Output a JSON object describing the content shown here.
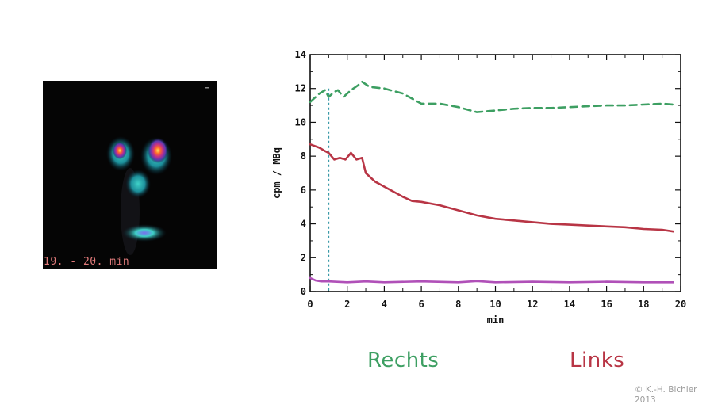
{
  "scan": {
    "caption": "19. - 20. min"
  },
  "chart_data": {
    "type": "line",
    "xlabel": "min",
    "ylabel": "cpm / MBq",
    "xlim": [
      0,
      20
    ],
    "ylim": [
      0,
      14
    ],
    "x_ticks": [
      "0",
      "2",
      "4",
      "6",
      "8",
      "10",
      "12",
      "14",
      "16",
      "18",
      "20"
    ],
    "y_ticks": [
      "0",
      "2",
      "4",
      "6",
      "8",
      "10",
      "12",
      "14"
    ],
    "reference_line_x": 1,
    "series": [
      {
        "name": "Rechts",
        "color": "#3d9f62",
        "style": "dashed",
        "points": [
          [
            0,
            11.2
          ],
          [
            0.5,
            11.7
          ],
          [
            0.8,
            11.9
          ],
          [
            1.0,
            11.5
          ],
          [
            1.3,
            11.8
          ],
          [
            1.5,
            11.9
          ],
          [
            1.8,
            11.5
          ],
          [
            2.2,
            11.9
          ],
          [
            2.6,
            12.2
          ],
          [
            2.8,
            12.4
          ],
          [
            3.2,
            12.1
          ],
          [
            4.0,
            12.0
          ],
          [
            5.0,
            11.7
          ],
          [
            6.0,
            11.1
          ],
          [
            7.0,
            11.1
          ],
          [
            8.0,
            10.9
          ],
          [
            9.0,
            10.6
          ],
          [
            10.0,
            10.7
          ],
          [
            11.0,
            10.8
          ],
          [
            12.0,
            10.85
          ],
          [
            13.0,
            10.85
          ],
          [
            14.0,
            10.9
          ],
          [
            15.0,
            10.95
          ],
          [
            16.0,
            11.0
          ],
          [
            17.0,
            11.0
          ],
          [
            18.0,
            11.05
          ],
          [
            19.0,
            11.1
          ],
          [
            19.6,
            11.05
          ]
        ]
      },
      {
        "name": "Links",
        "color": "#b83545",
        "style": "solid",
        "points": [
          [
            0,
            8.7
          ],
          [
            0.5,
            8.5
          ],
          [
            0.8,
            8.3
          ],
          [
            1.0,
            8.2
          ],
          [
            1.3,
            7.8
          ],
          [
            1.6,
            7.9
          ],
          [
            1.9,
            7.8
          ],
          [
            2.2,
            8.2
          ],
          [
            2.5,
            7.8
          ],
          [
            2.8,
            7.9
          ],
          [
            3.0,
            7.0
          ],
          [
            3.5,
            6.5
          ],
          [
            4.0,
            6.2
          ],
          [
            5.0,
            5.6
          ],
          [
            5.5,
            5.35
          ],
          [
            6.0,
            5.3
          ],
          [
            7.0,
            5.1
          ],
          [
            8.0,
            4.8
          ],
          [
            9.0,
            4.5
          ],
          [
            10.0,
            4.3
          ],
          [
            11.0,
            4.2
          ],
          [
            12.0,
            4.1
          ],
          [
            13.0,
            4.0
          ],
          [
            14.0,
            3.95
          ],
          [
            15.0,
            3.9
          ],
          [
            16.0,
            3.85
          ],
          [
            17.0,
            3.8
          ],
          [
            18.0,
            3.7
          ],
          [
            19.0,
            3.65
          ],
          [
            19.6,
            3.55
          ]
        ]
      },
      {
        "name": "",
        "color": "#b050b8",
        "style": "solid",
        "points": [
          [
            0,
            0.8
          ],
          [
            0.3,
            0.65
          ],
          [
            0.6,
            0.6
          ],
          [
            1,
            0.6
          ],
          [
            2,
            0.55
          ],
          [
            3,
            0.6
          ],
          [
            4,
            0.55
          ],
          [
            6,
            0.6
          ],
          [
            8,
            0.55
          ],
          [
            9,
            0.62
          ],
          [
            10,
            0.55
          ],
          [
            12,
            0.58
          ],
          [
            14,
            0.55
          ],
          [
            16,
            0.58
          ],
          [
            18,
            0.55
          ],
          [
            19.6,
            0.55
          ]
        ]
      }
    ]
  },
  "legend": {
    "rechts": "Rechts",
    "links": "Links"
  },
  "copyright": "© K.-H. Bichler 2013"
}
